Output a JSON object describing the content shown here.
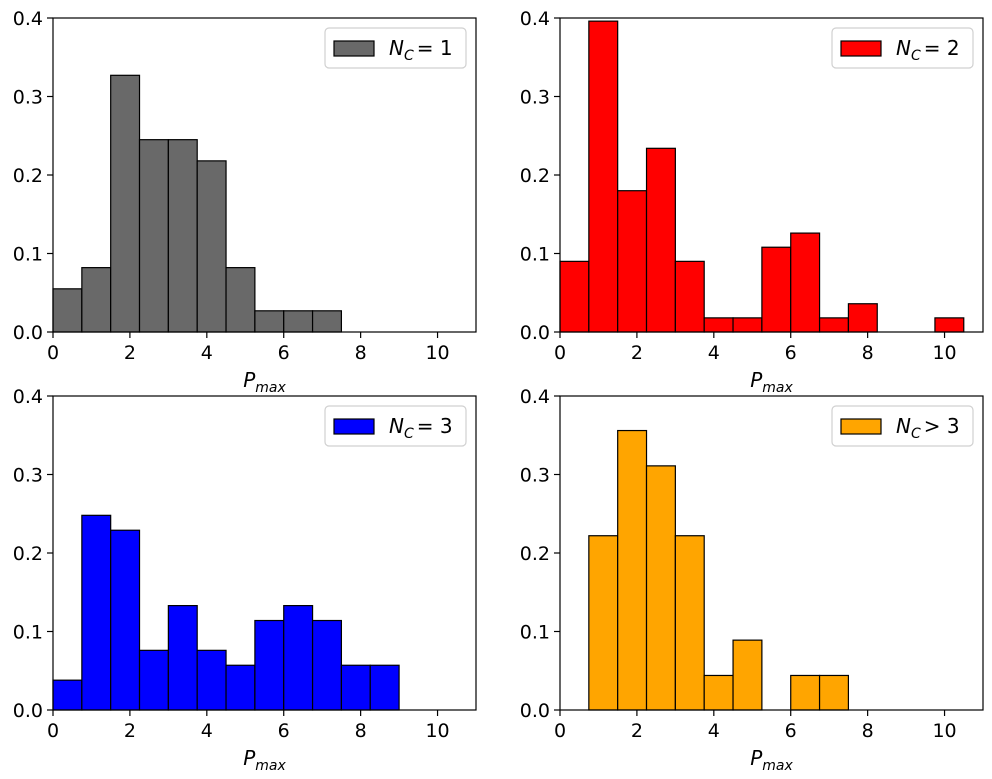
{
  "chart_data": [
    {
      "type": "bar",
      "label": "N_C = 1",
      "legend": {
        "prefix": "N",
        "sub": "C",
        "relation": "= 1",
        "location": "top-right"
      },
      "color": "#696969",
      "bin_edges": [
        0,
        0.75,
        1.5,
        2.25,
        3.0,
        3.75,
        4.5,
        5.25,
        6.0,
        6.75,
        7.5,
        8.25,
        9.0,
        9.75,
        10.5
      ],
      "values": [
        0.055,
        0.082,
        0.327,
        0.245,
        0.245,
        0.218,
        0.082,
        0.027,
        0.027,
        0.027,
        0,
        0,
        0,
        0
      ],
      "xlabel": {
        "base": "P",
        "sub": "max"
      },
      "xlim": [
        0,
        11
      ],
      "ylim": [
        0,
        0.4
      ],
      "xticks": [
        "0",
        "2",
        "4",
        "6",
        "8",
        "10"
      ],
      "yticks": [
        "0.0",
        "0.1",
        "0.2",
        "0.3",
        "0.4"
      ]
    },
    {
      "type": "bar",
      "label": "N_C = 2",
      "legend": {
        "prefix": "N",
        "sub": "C",
        "relation": "= 2",
        "location": "top-right"
      },
      "color": "#ff0000",
      "bin_edges": [
        0,
        0.75,
        1.5,
        2.25,
        3.0,
        3.75,
        4.5,
        5.25,
        6.0,
        6.75,
        7.5,
        8.25,
        9.0,
        9.75,
        10.5
      ],
      "values": [
        0.09,
        0.396,
        0.18,
        0.234,
        0.09,
        0.018,
        0.018,
        0.108,
        0.126,
        0.018,
        0.036,
        0,
        0,
        0.018
      ],
      "xlabel": {
        "base": "P",
        "sub": "max"
      },
      "xlim": [
        0,
        11
      ],
      "ylim": [
        0,
        0.4
      ],
      "xticks": [
        "0",
        "2",
        "4",
        "6",
        "8",
        "10"
      ],
      "yticks": [
        "0.0",
        "0.1",
        "0.2",
        "0.3",
        "0.4"
      ]
    },
    {
      "type": "bar",
      "label": "N_C = 3",
      "legend": {
        "prefix": "N",
        "sub": "C",
        "relation": "= 3",
        "location": "top-right"
      },
      "color": "#0000ff",
      "bin_edges": [
        0,
        0.75,
        1.5,
        2.25,
        3.0,
        3.75,
        4.5,
        5.25,
        6.0,
        6.75,
        7.5,
        8.25,
        9.0,
        9.75,
        10.5
      ],
      "values": [
        0.038,
        0.248,
        0.229,
        0.076,
        0.133,
        0.076,
        0.057,
        0.114,
        0.133,
        0.114,
        0.057,
        0.057,
        0,
        0
      ],
      "xlabel": {
        "base": "P",
        "sub": "max"
      },
      "xlim": [
        0,
        11
      ],
      "ylim": [
        0,
        0.4
      ],
      "xticks": [
        "0",
        "2",
        "4",
        "6",
        "8",
        "10"
      ],
      "yticks": [
        "0.0",
        "0.1",
        "0.2",
        "0.3",
        "0.4"
      ]
    },
    {
      "type": "bar",
      "label": "N_C > 3",
      "legend": {
        "prefix": "N",
        "sub": "C",
        "relation": "> 3",
        "location": "top-right"
      },
      "color": "#ffa500",
      "bin_edges": [
        0,
        0.75,
        1.5,
        2.25,
        3.0,
        3.75,
        4.5,
        5.25,
        6.0,
        6.75,
        7.5,
        8.25,
        9.0,
        9.75,
        10.5
      ],
      "values": [
        0,
        0.222,
        0.356,
        0.311,
        0.222,
        0.044,
        0.089,
        0,
        0.044,
        0.044,
        0,
        0,
        0,
        0
      ],
      "xlabel": {
        "base": "P",
        "sub": "max"
      },
      "xlim": [
        0,
        11
      ],
      "ylim": [
        0,
        0.4
      ],
      "xticks": [
        "0",
        "2",
        "4",
        "6",
        "8",
        "10"
      ],
      "yticks": [
        "0.0",
        "0.1",
        "0.2",
        "0.3",
        "0.4"
      ]
    }
  ]
}
